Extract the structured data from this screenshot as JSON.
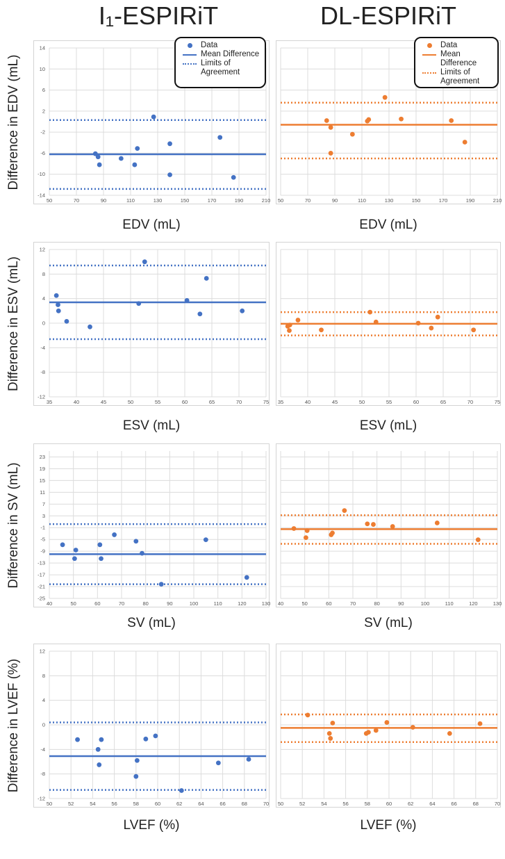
{
  "columns": [
    {
      "title": "I₁-ESPIRiT",
      "color": "#4472C4"
    },
    {
      "title": "DL-ESPIRiT",
      "color": "#ED7D31"
    }
  ],
  "legend": {
    "data": "Data",
    "mean": "Mean Difference",
    "limits": "Limits of Agreement"
  },
  "rows": [
    {
      "ylabel": "Difference in EDV (mL)",
      "xlabel": "EDV (mL)"
    },
    {
      "ylabel": "Difference in ESV (mL)",
      "xlabel": "ESV (mL)"
    },
    {
      "ylabel": "Difference in SV (mL)",
      "xlabel": "SV (mL)"
    },
    {
      "ylabel": "Difference in LVEF (%)",
      "xlabel": "LVEF (%)"
    }
  ],
  "chart_data": [
    {
      "type": "scatter",
      "method": "I₁-ESPIRiT",
      "xlabel": "EDV (mL)",
      "ylabel": "Difference in EDV (mL)",
      "xlim": [
        50,
        210
      ],
      "xticks": [
        50,
        70,
        90,
        110,
        130,
        150,
        170,
        190,
        210
      ],
      "ylim": [
        -14,
        14
      ],
      "yticks": [
        -14,
        -10,
        -6,
        -2,
        2,
        6,
        10,
        14
      ],
      "show_yticks": true,
      "x": [
        84,
        86,
        87,
        103,
        113,
        115,
        127,
        139,
        139,
        176,
        186
      ],
      "y": [
        -6.1,
        -6.7,
        -8.2,
        -7.0,
        -8.2,
        -5.1,
        0.9,
        -4.2,
        -10.1,
        -3.0,
        -10.6
      ],
      "mean": -6.2,
      "upper_loa": 0.3,
      "lower_loa": -12.8,
      "legend": true
    },
    {
      "type": "scatter",
      "method": "DL-ESPIRiT",
      "xlabel": "EDV (mL)",
      "ylabel": "",
      "xlim": [
        50,
        210
      ],
      "xticks": [
        50,
        70,
        90,
        110,
        130,
        150,
        170,
        190,
        210
      ],
      "ylim": [
        -14,
        14
      ],
      "yticks": [
        -14,
        -10,
        -6,
        -2,
        2,
        6,
        10,
        14
      ],
      "show_yticks": false,
      "x": [
        84,
        87,
        87,
        103,
        114,
        115,
        127,
        139,
        176,
        186
      ],
      "y": [
        0.2,
        -1.1,
        -6.0,
        -2.4,
        0.1,
        0.4,
        4.6,
        0.5,
        0.2,
        -3.9
      ],
      "mean": -0.6,
      "upper_loa": 3.6,
      "lower_loa": -7.0,
      "legend": true
    },
    {
      "type": "scatter",
      "method": "I₁-ESPIRiT",
      "xlabel": "ESV (mL)",
      "ylabel": "Difference in ESV (mL)",
      "xlim": [
        35,
        75
      ],
      "xticks": [
        35,
        40,
        45,
        50,
        55,
        60,
        65,
        70,
        75
      ],
      "ylim": [
        -12,
        12
      ],
      "yticks": [
        -12,
        -8,
        -4,
        0,
        4,
        8,
        12
      ],
      "show_yticks": true,
      "x": [
        36.3,
        36.6,
        36.7,
        38.2,
        42.5,
        51.5,
        52.6,
        60.4,
        62.8,
        64.0,
        70.6
      ],
      "y": [
        4.5,
        3.0,
        2.0,
        0.3,
        -0.6,
        3.2,
        10.0,
        3.7,
        1.5,
        7.3,
        2.0
      ],
      "mean": 3.4,
      "upper_loa": 9.4,
      "lower_loa": -2.6,
      "legend": false
    },
    {
      "type": "scatter",
      "method": "DL-ESPIRiT",
      "xlabel": "ESV (mL)",
      "ylabel": "",
      "xlim": [
        35,
        75
      ],
      "xticks": [
        35,
        40,
        45,
        50,
        55,
        60,
        65,
        70,
        75
      ],
      "ylim": [
        -12,
        12
      ],
      "yticks": [
        -12,
        -8,
        -4,
        0,
        4,
        8,
        12
      ],
      "show_yticks": false,
      "x": [
        36.3,
        36.6,
        36.7,
        38.2,
        42.5,
        51.5,
        52.6,
        60.4,
        62.8,
        64.0,
        70.6
      ],
      "y": [
        -0.5,
        -1.2,
        -0.3,
        0.5,
        -1.1,
        1.8,
        0.2,
        0.0,
        -0.8,
        1.0,
        -1.1
      ],
      "mean": -0.1,
      "upper_loa": 1.8,
      "lower_loa": -2.0,
      "legend": false
    },
    {
      "type": "scatter",
      "method": "I₁-ESPIRiT",
      "xlabel": "SV (mL)",
      "ylabel": "Difference in SV (mL)",
      "xlim": [
        40,
        130
      ],
      "xticks": [
        40,
        50,
        60,
        70,
        80,
        90,
        100,
        110,
        120,
        130
      ],
      "ylim": [
        -25,
        25
      ],
      "yticks": [
        -25,
        -21,
        -17,
        -13,
        -9,
        -5,
        -1,
        3,
        7,
        11,
        15,
        19,
        23
      ],
      "show_yticks": true,
      "x": [
        45.5,
        50.5,
        51.0,
        61.0,
        61.5,
        67.0,
        76.0,
        78.5,
        86.5,
        105.0,
        122.0
      ],
      "y": [
        -6.8,
        -11.5,
        -8.6,
        -6.8,
        -11.5,
        -3.4,
        -5.6,
        -9.7,
        -20.2,
        -5.1,
        -17.9
      ],
      "mean": -10.0,
      "upper_loa": 0.2,
      "lower_loa": -20.2,
      "legend": false
    },
    {
      "type": "scatter",
      "method": "DL-ESPIRiT",
      "xlabel": "SV (mL)",
      "ylabel": "",
      "xlim": [
        40,
        130
      ],
      "xticks": [
        40,
        50,
        60,
        70,
        80,
        90,
        100,
        110,
        120,
        130
      ],
      "ylim": [
        -25,
        25
      ],
      "yticks": [
        -25,
        -21,
        -17,
        -13,
        -9,
        -5,
        -1,
        3,
        7,
        11,
        15,
        19,
        23
      ],
      "show_yticks": false,
      "x": [
        45.5,
        50.5,
        51.0,
        61.0,
        61.5,
        66.5,
        76.0,
        78.5,
        86.5,
        105.0,
        122.0
      ],
      "y": [
        -1.3,
        -4.4,
        -2.0,
        -3.4,
        -2.8,
        4.8,
        0.3,
        0.1,
        -0.6,
        0.6,
        -5.1
      ],
      "mean": -1.5,
      "upper_loa": 3.2,
      "lower_loa": -6.5,
      "legend": false
    },
    {
      "type": "scatter",
      "method": "I₁-ESPIRiT",
      "xlabel": "LVEF (%)",
      "ylabel": "Difference in LVEF (%)",
      "xlim": [
        50,
        70
      ],
      "xticks": [
        50,
        52,
        54,
        56,
        58,
        60,
        62,
        64,
        66,
        68,
        70
      ],
      "ylim": [
        -12,
        12
      ],
      "yticks": [
        -12,
        -8,
        -4,
        0,
        4,
        8,
        12
      ],
      "show_yticks": true,
      "x": [
        52.6,
        54.5,
        54.6,
        54.8,
        58.0,
        58.1,
        58.9,
        59.8,
        62.2,
        65.6,
        68.4
      ],
      "y": [
        -2.4,
        -4.0,
        -6.5,
        -2.4,
        -8.4,
        -5.8,
        -2.3,
        -1.8,
        -10.7,
        -6.2,
        -5.6
      ],
      "mean": -5.1,
      "upper_loa": 0.4,
      "lower_loa": -10.6,
      "legend": false
    },
    {
      "type": "scatter",
      "method": "DL-ESPIRiT",
      "xlabel": "LVEF (%)",
      "ylabel": "",
      "xlim": [
        50,
        70
      ],
      "xticks": [
        50,
        52,
        54,
        56,
        58,
        60,
        62,
        64,
        66,
        68,
        70
      ],
      "ylim": [
        -12,
        12
      ],
      "yticks": [
        -12,
        -8,
        -4,
        0,
        4,
        8,
        12
      ],
      "show_yticks": false,
      "x": [
        52.5,
        54.5,
        54.6,
        54.8,
        57.9,
        58.1,
        58.8,
        59.8,
        62.2,
        65.6,
        68.4
      ],
      "y": [
        1.6,
        -1.4,
        -2.2,
        0.3,
        -1.4,
        -1.2,
        -0.9,
        0.4,
        -0.4,
        -1.4,
        0.2
      ],
      "mean": -0.5,
      "upper_loa": 1.7,
      "lower_loa": -2.8,
      "legend": false
    }
  ]
}
